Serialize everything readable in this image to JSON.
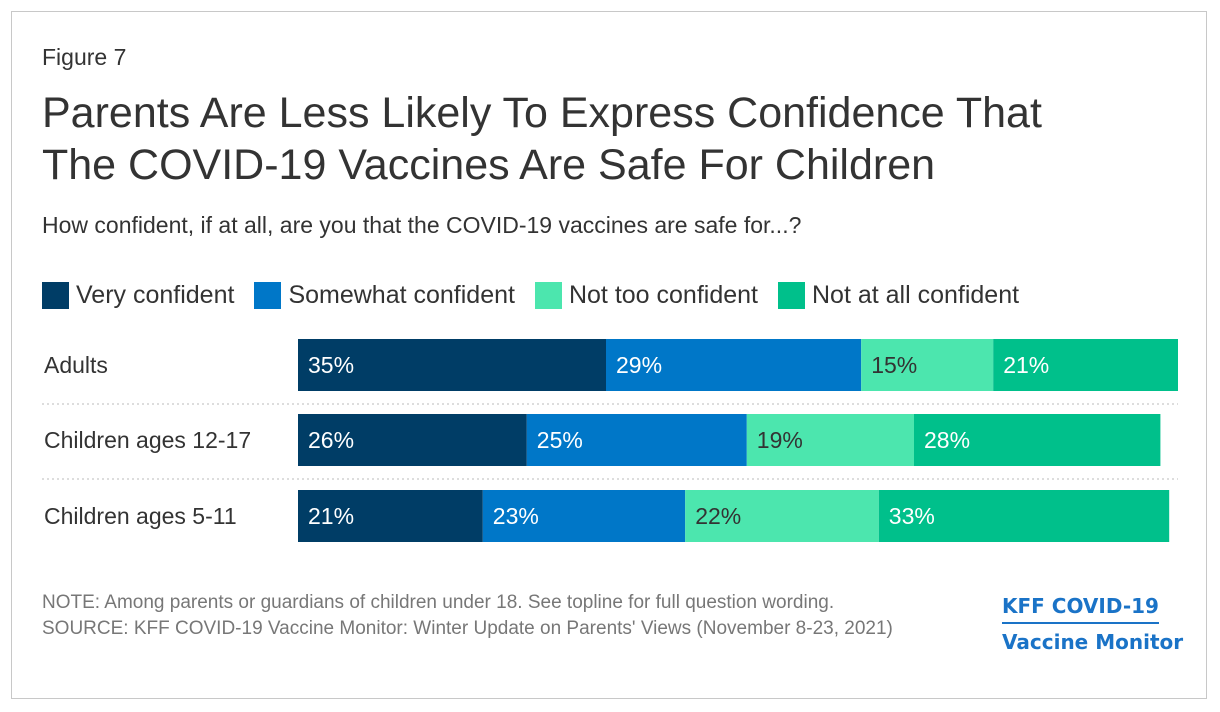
{
  "figure_label": "Figure 7",
  "title_line1": "Parents Are Less Likely To Express Confidence That",
  "title_line2": "The COVID-19 Vaccines Are Safe For Children",
  "subtitle": "How confident, if at all, are you that the COVID-19 vaccines are safe for...?",
  "note": "NOTE: Among parents or guardians of children under 18. See topline for full question wording.",
  "source": "SOURCE: KFF COVID-19 Vaccine Monitor: Winter Update on Parents' Views (November 8-23, 2021)",
  "logo": {
    "line1": "KFF COVID-19",
    "line2": "Vaccine Monitor"
  },
  "chart_data": {
    "type": "bar",
    "orientation": "horizontal",
    "stacked": true,
    "title": "Parents Are Less Likely To Express Confidence That The COVID-19 Vaccines Are Safe For Children",
    "subtitle": "How confident, if at all, are you that the COVID-19 vaccines are safe for...?",
    "legend_position": "top",
    "categories": [
      "Adults",
      "Children ages 12-17",
      "Children ages 5-11"
    ],
    "series": [
      {
        "name": "Very confident",
        "color": "#003d66",
        "label_color": "#ffffff",
        "values": [
          35,
          26,
          21
        ]
      },
      {
        "name": "Somewhat confident",
        "color": "#0077c8",
        "label_color": "#ffffff",
        "values": [
          29,
          25,
          23
        ]
      },
      {
        "name": "Not too confident",
        "color": "#4ce6ae",
        "label_color": "#333333",
        "values": [
          15,
          19,
          22
        ]
      },
      {
        "name": "Not at all confident",
        "color": "#00c08b",
        "label_color": "#ffffff",
        "values": [
          21,
          28,
          33
        ]
      }
    ],
    "value_suffix": "%",
    "xlim": [
      0,
      100
    ]
  }
}
